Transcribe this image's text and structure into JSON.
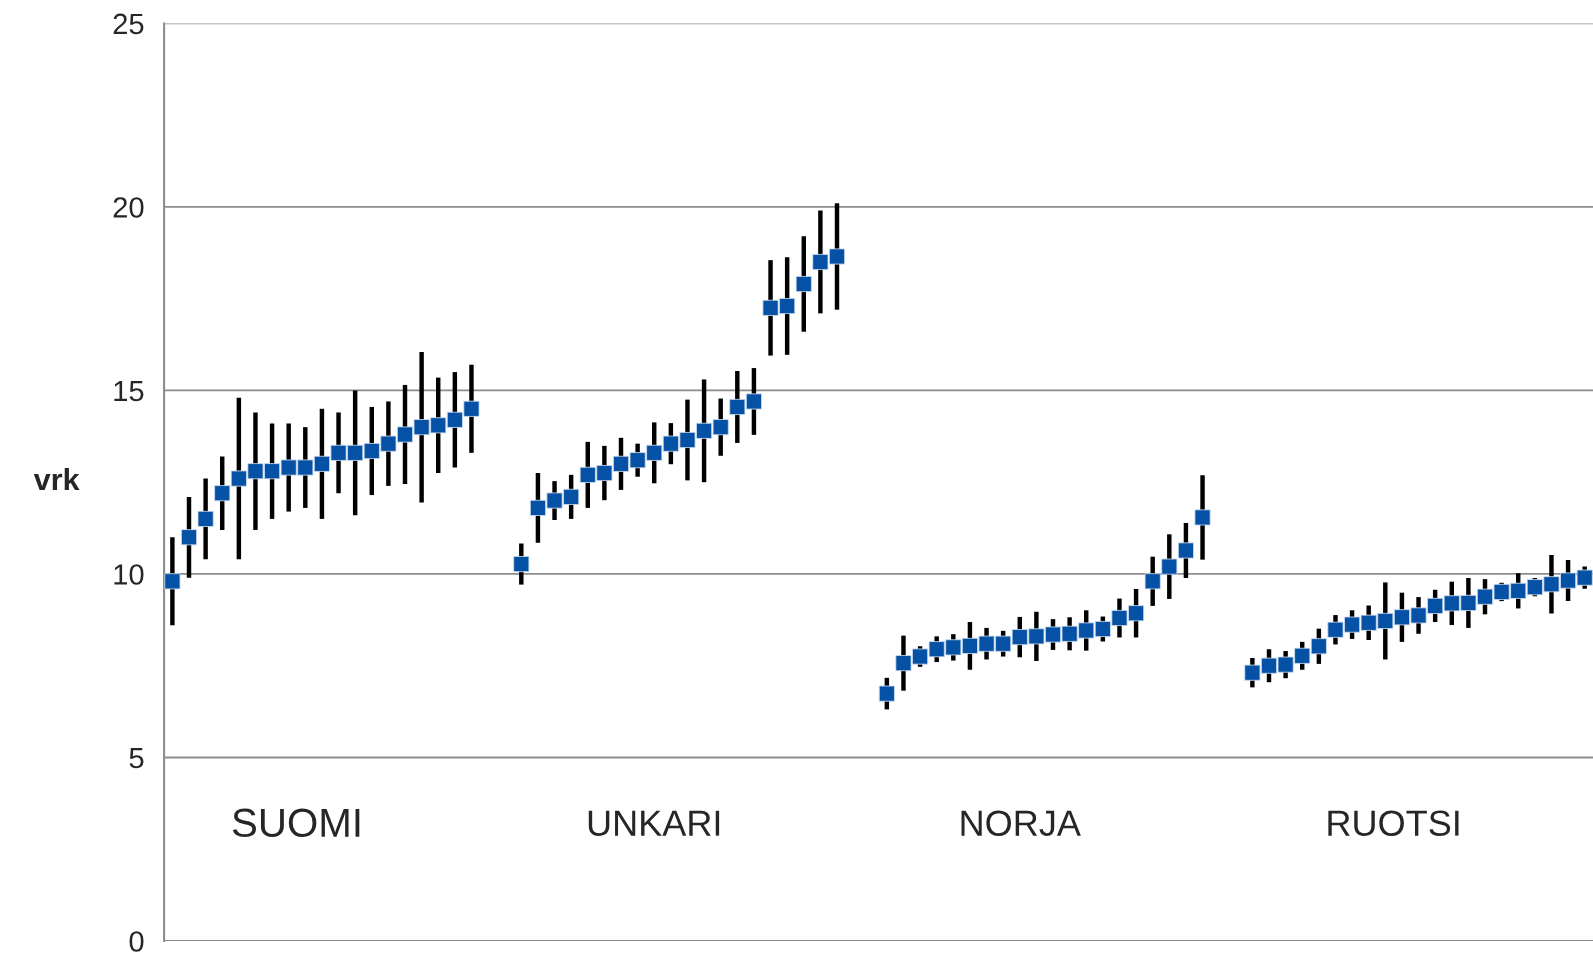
{
  "chart_data": {
    "type": "scatter",
    "ylabel": "vrk",
    "categories": [
      null,
      null,
      null,
      null,
      null,
      null,
      null,
      null,
      null,
      null,
      null,
      null,
      null,
      null,
      null,
      null,
      null,
      null,
      null,
      null,
      null,
      null,
      null,
      null,
      null,
      null,
      null,
      null,
      null,
      null,
      null,
      null,
      null,
      null,
      null,
      null,
      null,
      null,
      null,
      null,
      null,
      null,
      null,
      null,
      null,
      null,
      null,
      null,
      null,
      null,
      null,
      null,
      null,
      null,
      null,
      null,
      null,
      null,
      null,
      null,
      null,
      null,
      null,
      null,
      null,
      null,
      null,
      null,
      null,
      null,
      null,
      null,
      null,
      null,
      null,
      null,
      null,
      null,
      null,
      null,
      null,
      null,
      null,
      null,
      null,
      null
    ],
    "series": [
      {
        "color": "#0451a5",
        "marker": "square",
        "values": [
          9.8,
          11.0,
          11.5,
          12.2,
          12.6,
          12.8,
          12.8,
          12.9,
          12.9,
          13.0,
          13.3,
          13.3,
          13.35,
          13.55,
          13.8,
          14.0,
          14.05,
          14.2,
          14.5,
          null,
          null,
          10.27,
          11.8,
          12.0,
          12.1,
          12.7,
          12.75,
          13.0,
          13.1,
          13.3,
          13.55,
          13.65,
          13.9,
          14.0,
          14.55,
          14.7,
          17.25,
          17.3,
          17.9,
          18.5,
          18.65,
          null,
          null,
          6.74,
          7.57,
          7.75,
          7.95,
          8.0,
          8.04,
          8.1,
          8.1,
          8.28,
          8.3,
          8.35,
          8.37,
          8.46,
          8.5,
          8.8,
          8.93,
          9.8,
          10.2,
          10.64,
          11.54,
          null,
          null,
          7.31,
          7.5,
          7.53,
          7.77,
          8.03,
          8.48,
          8.62,
          8.67,
          8.72,
          8.82,
          8.87,
          9.13,
          9.2,
          9.21,
          9.38,
          9.51,
          9.54,
          9.64,
          9.72,
          9.82,
          9.9
        ],
        "errors": [
          1.2,
          1.1,
          1.1,
          1.0,
          2.2,
          1.6,
          1.3,
          1.2,
          1.1,
          1.5,
          1.1,
          1.7,
          1.2,
          1.15,
          1.35,
          2.05,
          1.3,
          1.3,
          1.2,
          null,
          null,
          0.56,
          0.95,
          0.53,
          0.6,
          0.9,
          0.74,
          0.71,
          0.45,
          0.83,
          0.56,
          1.1,
          1.4,
          0.78,
          0.98,
          0.91,
          1.3,
          1.33,
          1.3,
          1.4,
          1.45,
          null,
          null,
          0.43,
          0.75,
          0.28,
          0.35,
          0.36,
          0.65,
          0.43,
          0.35,
          0.55,
          0.67,
          0.42,
          0.45,
          0.55,
          0.34,
          0.53,
          0.66,
          0.67,
          0.88,
          0.75,
          1.15,
          null,
          null,
          0.4,
          0.45,
          0.37,
          0.38,
          0.48,
          0.4,
          0.39,
          0.47,
          1.05,
          0.67,
          0.5,
          0.44,
          0.59,
          0.68,
          0.48,
          0.25,
          0.48,
          0.25,
          0.8,
          0.56,
          0.3
        ]
      }
    ],
    "ylim": [
      0,
      25
    ],
    "yticks": [
      0,
      5,
      10,
      15,
      20,
      25
    ],
    "grid": "y",
    "annotations": [
      "SUOMI",
      "UNKARI",
      "NORJA",
      "RUOTSI"
    ]
  }
}
